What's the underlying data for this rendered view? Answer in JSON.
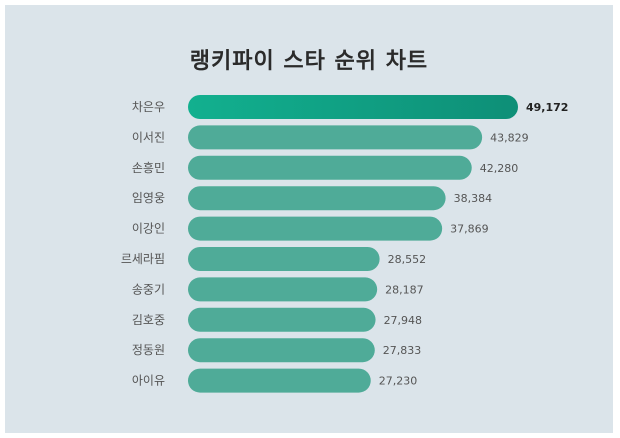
{
  "title": "랭키파이 스타 순위 차트",
  "chart_data": {
    "type": "bar",
    "orientation": "horizontal",
    "title": "랭키파이 스타 순위 차트",
    "categories": [
      "차은우",
      "이서진",
      "손흥민",
      "임영웅",
      "이강인",
      "르세라핌",
      "송중기",
      "김호중",
      "정동원",
      "아이유"
    ],
    "values": [
      49172,
      43829,
      42280,
      38384,
      37869,
      28552,
      28187,
      27948,
      27833,
      27230
    ],
    "value_labels": [
      "49,172",
      "43,829",
      "42,280",
      "38,384",
      "37,869",
      "28,552",
      "28,187",
      "27,948",
      "27,833",
      "27,230"
    ],
    "colors": {
      "top_start": "#12b08f",
      "top_end": "#0e8f77",
      "bar": "#4fab98"
    },
    "grid": false,
    "legend": "none"
  }
}
